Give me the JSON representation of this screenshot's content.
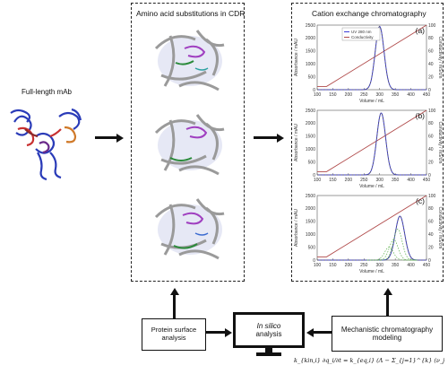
{
  "left": {
    "mab_label": "Full-length mAb"
  },
  "cdr_box": {
    "title": "Amino acid substitutions in CDR"
  },
  "cex_box": {
    "title": "Cation exchange chromatography"
  },
  "panels": [
    {
      "letter": "(a)",
      "legend": [
        "UV 280 nm",
        "Conductivity"
      ],
      "ylabel": "Absorbance / mAU",
      "y2label": "Conductivity / mS/cm",
      "xlabel": "Volume / mL"
    },
    {
      "letter": "(b)",
      "ylabel": "Absorbance / mAU",
      "y2label": "Conductivity / mS/cm",
      "xlabel": "Volume / mL"
    },
    {
      "letter": "(c)",
      "ylabel": "Absorbance / mAU",
      "y2label": "Conductivity / mS/cm",
      "xlabel": "Volume / mL"
    }
  ],
  "chart_data": [
    {
      "type": "line",
      "x_ticks": [
        "100",
        "150",
        "200",
        "250",
        "300",
        "350",
        "400",
        "450"
      ],
      "y_ticks": [
        "0",
        "500",
        "1000",
        "1500",
        "2000",
        "2500"
      ],
      "y2_ticks": [
        "0",
        "20",
        "40",
        "60",
        "80",
        "100"
      ],
      "xlim": [
        100,
        450
      ],
      "ylim": [
        0,
        2500
      ],
      "peak_x": 300,
      "peak_y": 2450,
      "peak_width": 14,
      "conductivity": {
        "start": [
          130,
          5
        ],
        "end": [
          450,
          100
        ]
      }
    },
    {
      "type": "line",
      "x_ticks": [
        "100",
        "150",
        "200",
        "250",
        "300",
        "350",
        "400",
        "450"
      ],
      "y_ticks": [
        "0",
        "500",
        "1000",
        "1500",
        "2000",
        "2500"
      ],
      "y2_ticks": [
        "0",
        "20",
        "40",
        "60",
        "80",
        "100"
      ],
      "xlim": [
        100,
        450
      ],
      "ylim": [
        0,
        2500
      ],
      "peak_x": 305,
      "peak_y": 2400,
      "peak_width": 14,
      "conductivity": {
        "start": [
          130,
          5
        ],
        "end": [
          450,
          100
        ]
      }
    },
    {
      "type": "line",
      "x_ticks": [
        "100",
        "150",
        "200",
        "250",
        "300",
        "350",
        "400",
        "450"
      ],
      "y_ticks": [
        "0",
        "500",
        "1000",
        "1500",
        "2000",
        "2500"
      ],
      "y2_ticks": [
        "0",
        "20",
        "40",
        "60",
        "80",
        "100"
      ],
      "xlim": [
        100,
        450
      ],
      "ylim": [
        0,
        2500
      ],
      "peak_x": 365,
      "peak_y": 1700,
      "peak_width": 15,
      "conductivity": {
        "start": [
          130,
          5
        ],
        "end": [
          450,
          100
        ]
      }
    }
  ],
  "bottom": {
    "surface_label": "Protein surface analysis",
    "insilico_italic": "In silico",
    "insilico_rest": "analysis",
    "mechanistic_label": "Mechanistic chromatography modeling"
  },
  "equation": {
    "lhs": "k_{kin,i} ∂q_i/∂t = k_{eq,i} (Λ − Σ_{j=1}^{k} (ν_j + σ_j) q_j)^{ν_i} c_{p,i} − q_i c_s^{ν_i}"
  },
  "colors": {
    "uv": "#3b3bd6",
    "conductivity": "#b04a4a",
    "fit": "#5ab04a"
  }
}
